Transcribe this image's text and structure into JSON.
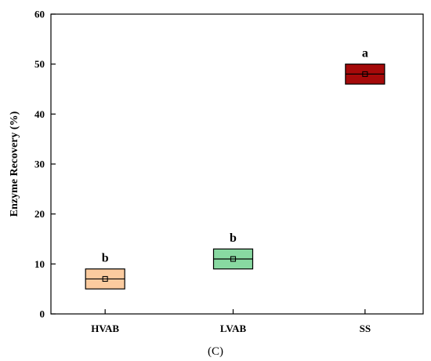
{
  "chart_data": {
    "type": "box",
    "title": "",
    "caption": "(C)",
    "xlabel": "",
    "ylabel": "Enzyme Recovery (%)",
    "ylim": [
      0,
      60
    ],
    "yticks": [
      0,
      10,
      20,
      30,
      40,
      50,
      60
    ],
    "grid": false,
    "categories": [
      "HVAB",
      "LVAB",
      "SS"
    ],
    "boxes": [
      {
        "category": "HVAB",
        "q1": 5,
        "median": 7,
        "q3": 9,
        "mean": 7,
        "significance": "b",
        "color": "#fbcb9f"
      },
      {
        "category": "LVAB",
        "q1": 9,
        "median": 11,
        "q3": 13,
        "mean": 11,
        "significance": "b",
        "color": "#88d9a1"
      },
      {
        "category": "SS",
        "q1": 46,
        "median": 48,
        "q3": 50,
        "mean": 48,
        "significance": "a",
        "color": "#a50a0a"
      }
    ]
  }
}
